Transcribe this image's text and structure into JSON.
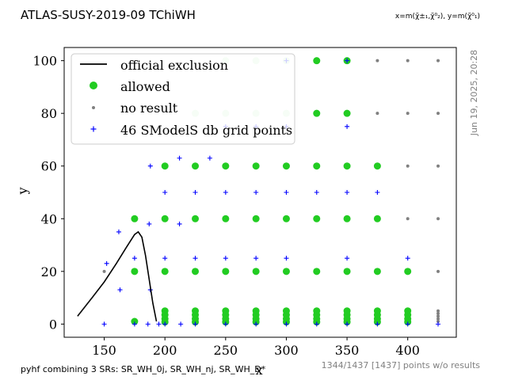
{
  "header": {
    "title": "ATLAS-SUSY-2019-09 TChiWH",
    "axis_definition": "x=m(χ̃±₁,χ̃⁰₂), y=m(χ̃⁰₁)"
  },
  "timestamp": "Jun 19, 2025, 20:28",
  "footer": {
    "left": "pyhf combining 3 SRs: SR_WH_0j, SR_WH_nj, SR_WH_D*",
    "right": "1344/1437 [1437] points w/o results"
  },
  "chart_data": {
    "type": "scatter",
    "xlabel": "x",
    "ylabel": "y",
    "xlim": [
      117,
      440
    ],
    "ylim": [
      -5,
      105
    ],
    "xticks": [
      150,
      200,
      250,
      300,
      350,
      400
    ],
    "yticks": [
      0,
      20,
      40,
      60,
      80,
      100
    ],
    "legend_position": "top-left",
    "legend": [
      {
        "key": "line",
        "label": "official exclusion"
      },
      {
        "key": "allowed",
        "label": "allowed"
      },
      {
        "key": "noresult",
        "label": "no result"
      },
      {
        "key": "grid",
        "label": "46 SModelS db grid points"
      }
    ],
    "colors": {
      "allowed": "#22cc22",
      "noresult": "#808080",
      "grid": "#0000ff",
      "line": "#000000"
    },
    "official_exclusion": [
      [
        128,
        3
      ],
      [
        140,
        10
      ],
      [
        150,
        16
      ],
      [
        160,
        23
      ],
      [
        168,
        29
      ],
      [
        175,
        34
      ],
      [
        178,
        35
      ],
      [
        181,
        33
      ],
      [
        184,
        26
      ],
      [
        187,
        17
      ],
      [
        190,
        8
      ],
      [
        193,
        1
      ]
    ],
    "allowed": [
      [
        175,
        40
      ],
      [
        175,
        20
      ],
      [
        175,
        1
      ],
      [
        200,
        60
      ],
      [
        200,
        40
      ],
      [
        200,
        20
      ],
      [
        200,
        5
      ],
      [
        200,
        3.5
      ],
      [
        200,
        2
      ],
      [
        200,
        0.8
      ],
      [
        225,
        60
      ],
      [
        225,
        40
      ],
      [
        225,
        20
      ],
      [
        225,
        5
      ],
      [
        225,
        3.5
      ],
      [
        225,
        2
      ],
      [
        225,
        0.8
      ],
      [
        250,
        60
      ],
      [
        250,
        40
      ],
      [
        250,
        20
      ],
      [
        250,
        5
      ],
      [
        250,
        3.5
      ],
      [
        250,
        2
      ],
      [
        250,
        0.8
      ],
      [
        275,
        60
      ],
      [
        275,
        40
      ],
      [
        275,
        20
      ],
      [
        275,
        5
      ],
      [
        275,
        3.5
      ],
      [
        275,
        2
      ],
      [
        275,
        0.8
      ],
      [
        300,
        60
      ],
      [
        300,
        40
      ],
      [
        300,
        20
      ],
      [
        300,
        5
      ],
      [
        300,
        3.5
      ],
      [
        300,
        2
      ],
      [
        300,
        0.8
      ],
      [
        325,
        100
      ],
      [
        325,
        80
      ],
      [
        325,
        60
      ],
      [
        325,
        40
      ],
      [
        325,
        20
      ],
      [
        325,
        5
      ],
      [
        325,
        3.5
      ],
      [
        325,
        2
      ],
      [
        325,
        0.8
      ],
      [
        350,
        100
      ],
      [
        350,
        80
      ],
      [
        350,
        60
      ],
      [
        350,
        40
      ],
      [
        350,
        20
      ],
      [
        350,
        5
      ],
      [
        350,
        3.5
      ],
      [
        350,
        2
      ],
      [
        350,
        0.8
      ],
      [
        375,
        60
      ],
      [
        375,
        40
      ],
      [
        375,
        20
      ],
      [
        375,
        5
      ],
      [
        375,
        3.5
      ],
      [
        375,
        2
      ],
      [
        375,
        0.8
      ],
      [
        400,
        20
      ],
      [
        400,
        5
      ],
      [
        400,
        3.5
      ],
      [
        400,
        2
      ],
      [
        400,
        0.8
      ]
    ],
    "allowed_faded": [
      [
        250,
        100
      ],
      [
        275,
        100
      ],
      [
        300,
        100
      ],
      [
        225,
        80
      ],
      [
        250,
        80
      ],
      [
        275,
        80
      ],
      [
        300,
        80
      ]
    ],
    "no_result": [
      [
        150,
        20
      ],
      [
        375,
        100
      ],
      [
        400,
        100
      ],
      [
        425,
        100
      ],
      [
        375,
        80
      ],
      [
        400,
        80
      ],
      [
        425,
        80
      ],
      [
        400,
        60
      ],
      [
        425,
        60
      ],
      [
        400,
        40
      ],
      [
        425,
        40
      ],
      [
        425,
        20
      ],
      [
        425,
        5
      ],
      [
        425,
        4
      ],
      [
        425,
        3
      ],
      [
        425,
        2
      ],
      [
        425,
        1
      ]
    ],
    "grid_points": [
      [
        350,
        100
      ],
      [
        300,
        100
      ],
      [
        350,
        75
      ],
      [
        300,
        75
      ],
      [
        275,
        75
      ],
      [
        250,
        75
      ],
      [
        188,
        60
      ],
      [
        212,
        63
      ],
      [
        237,
        63
      ],
      [
        200,
        50
      ],
      [
        225,
        50
      ],
      [
        250,
        50
      ],
      [
        275,
        50
      ],
      [
        300,
        50
      ],
      [
        325,
        50
      ],
      [
        350,
        50
      ],
      [
        375,
        50
      ],
      [
        162,
        35
      ],
      [
        187,
        38
      ],
      [
        212,
        38
      ],
      [
        152,
        23
      ],
      [
        175,
        25
      ],
      [
        200,
        25
      ],
      [
        225,
        25
      ],
      [
        250,
        25
      ],
      [
        275,
        25
      ],
      [
        300,
        25
      ],
      [
        350,
        25
      ],
      [
        400,
        25
      ],
      [
        163,
        13
      ],
      [
        188,
        13
      ],
      [
        150,
        0
      ],
      [
        175,
        0
      ],
      [
        200,
        0
      ],
      [
        225,
        0
      ],
      [
        250,
        0
      ],
      [
        275,
        0
      ],
      [
        300,
        0
      ],
      [
        325,
        0
      ],
      [
        350,
        0
      ],
      [
        375,
        0
      ],
      [
        400,
        0
      ],
      [
        425,
        0
      ],
      [
        186,
        0
      ],
      [
        195,
        0
      ],
      [
        213,
        0
      ]
    ]
  }
}
